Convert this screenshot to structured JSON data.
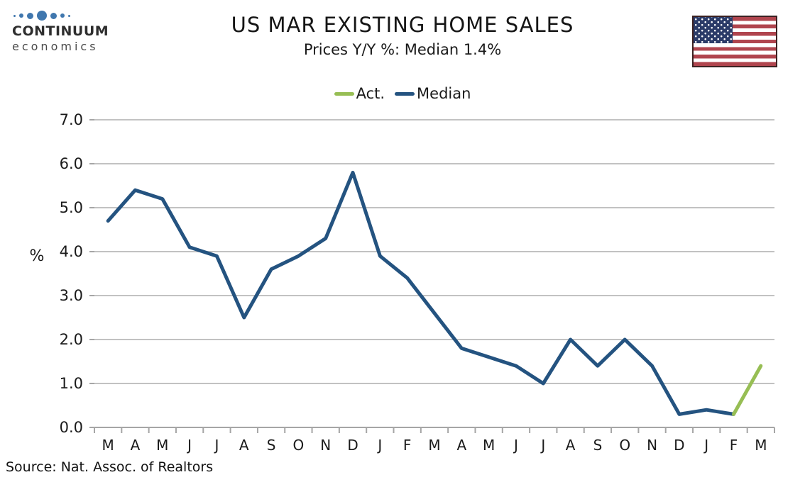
{
  "header": {
    "logo_brand": "CONTINUUM",
    "logo_sub": "economics",
    "title": "US MAR EXISTING HOME SALES",
    "subtitle": "Prices Y/Y %: Median 1.4%"
  },
  "legend": [
    {
      "label": "Act.",
      "color": "#97BE54"
    },
    {
      "label": "Median",
      "color": "#245380"
    }
  ],
  "source": "Source: Nat. Assoc. of Realtors",
  "colors": {
    "gridline": "#C2C2C2",
    "axis": "#A6A6A6",
    "text": "#1a1a1a",
    "act_green": "#97BE54",
    "median_blue": "#245380",
    "logo_blue": "#4077AE"
  },
  "chart_data": {
    "type": "line",
    "title": "US MAR EXISTING HOME SALES",
    "subtitle": "Prices Y/Y %: Median 1.4%",
    "xlabel": "",
    "ylabel": "%",
    "ylim": [
      0.0,
      7.0
    ],
    "ytick_labels": [
      "0.0",
      "1.0",
      "2.0",
      "3.0",
      "4.0",
      "5.0",
      "6.0",
      "7.0"
    ],
    "grid": true,
    "legend_position": "top",
    "categories": [
      "M",
      "A",
      "M",
      "J",
      "J",
      "A",
      "S",
      "O",
      "N",
      "D",
      "J",
      "F",
      "M",
      "A",
      "M",
      "J",
      "J",
      "A",
      "S",
      "O",
      "N",
      "D",
      "J",
      "F",
      "M"
    ],
    "series": [
      {
        "name": "Median",
        "color": "#245380",
        "values": [
          4.7,
          5.4,
          5.2,
          4.1,
          3.9,
          2.5,
          3.6,
          3.9,
          4.3,
          5.8,
          3.9,
          3.4,
          2.6,
          1.8,
          1.6,
          1.4,
          1.0,
          2.0,
          1.4,
          2.0,
          1.4,
          0.3,
          0.4,
          0.3,
          null
        ]
      },
      {
        "name": "Act.",
        "color": "#97BE54",
        "values": [
          null,
          null,
          null,
          null,
          null,
          null,
          null,
          null,
          null,
          null,
          null,
          null,
          null,
          null,
          null,
          null,
          null,
          null,
          null,
          null,
          null,
          null,
          null,
          0.3,
          1.4
        ]
      }
    ]
  }
}
